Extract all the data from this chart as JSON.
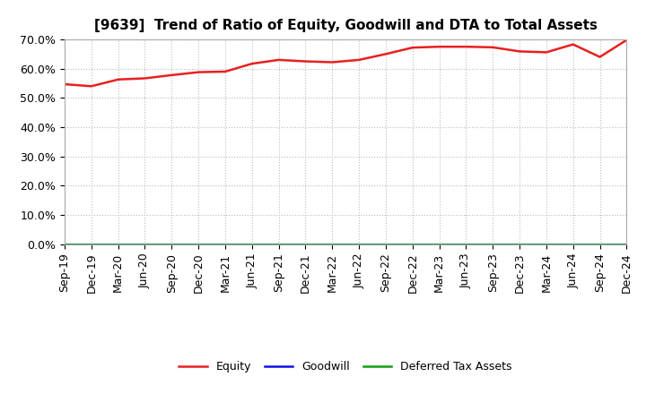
{
  "title": "[9639]  Trend of Ratio of Equity, Goodwill and DTA to Total Assets",
  "x_labels": [
    "Sep-19",
    "Dec-19",
    "Mar-20",
    "Jun-20",
    "Sep-20",
    "Dec-20",
    "Mar-21",
    "Jun-21",
    "Sep-21",
    "Dec-21",
    "Mar-22",
    "Jun-22",
    "Sep-22",
    "Dec-22",
    "Mar-23",
    "Jun-23",
    "Sep-23",
    "Dec-23",
    "Mar-24",
    "Jun-24",
    "Sep-24",
    "Dec-24"
  ],
  "equity": [
    0.547,
    0.54,
    0.563,
    0.567,
    0.578,
    0.588,
    0.59,
    0.617,
    0.63,
    0.625,
    0.622,
    0.63,
    0.65,
    0.672,
    0.675,
    0.675,
    0.673,
    0.659,
    0.656,
    0.683,
    0.64,
    0.698
  ],
  "goodwill": [
    0.0,
    0.0,
    0.0,
    0.0,
    0.0,
    0.0,
    0.0,
    0.0,
    0.0,
    0.0,
    0.0,
    0.0,
    0.0,
    0.0,
    0.0,
    0.0,
    0.0,
    0.0,
    0.0,
    0.0,
    0.0,
    0.0
  ],
  "dta": [
    0.0,
    0.0,
    0.0,
    0.0,
    0.0,
    0.0,
    0.0,
    0.0,
    0.0,
    0.0,
    0.0,
    0.0,
    0.0,
    0.0,
    0.0,
    0.0,
    0.0,
    0.0,
    0.0,
    0.0,
    0.0,
    0.0
  ],
  "equity_color": "#e82020",
  "goodwill_color": "#1010e8",
  "dta_color": "#10a010",
  "background_color": "#ffffff",
  "plot_bg_color": "#ffffff",
  "grid_color": "#bbbbbb",
  "ylim": [
    0.0,
    0.7
  ],
  "yticks": [
    0.0,
    0.1,
    0.2,
    0.3,
    0.4,
    0.5,
    0.6,
    0.7
  ],
  "legend_labels": [
    "Equity",
    "Goodwill",
    "Deferred Tax Assets"
  ],
  "title_fontsize": 11,
  "tick_fontsize": 9,
  "legend_fontsize": 9
}
